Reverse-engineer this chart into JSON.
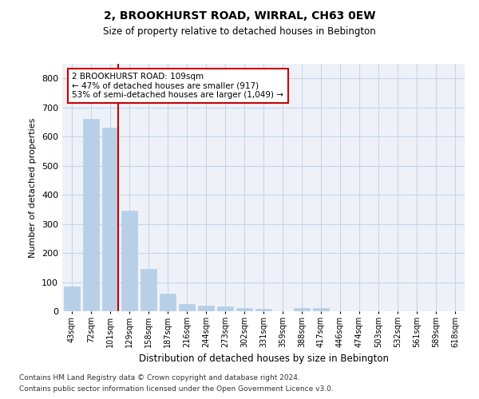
{
  "title": "2, BROOKHURST ROAD, WIRRAL, CH63 0EW",
  "subtitle": "Size of property relative to detached houses in Bebington",
  "xlabel": "Distribution of detached houses by size in Bebington",
  "ylabel": "Number of detached properties",
  "footnote1": "Contains HM Land Registry data © Crown copyright and database right 2024.",
  "footnote2": "Contains public sector information licensed under the Open Government Licence v3.0.",
  "annotation_line1": "2 BROOKHURST ROAD: 109sqm",
  "annotation_line2": "← 47% of detached houses are smaller (917)",
  "annotation_line3": "53% of semi-detached houses are larger (1,049) →",
  "bar_color": "#b8cfe8",
  "marker_line_color": "#cc0000",
  "annotation_box_edge": "#cc0000",
  "grid_color": "#c8d4e8",
  "bg_color": "#eef2f8",
  "categories": [
    "43sqm",
    "72sqm",
    "101sqm",
    "129sqm",
    "158sqm",
    "187sqm",
    "216sqm",
    "244sqm",
    "273sqm",
    "302sqm",
    "331sqm",
    "359sqm",
    "388sqm",
    "417sqm",
    "446sqm",
    "474sqm",
    "503sqm",
    "532sqm",
    "561sqm",
    "589sqm",
    "618sqm"
  ],
  "values": [
    85,
    660,
    630,
    345,
    145,
    60,
    25,
    20,
    17,
    12,
    8,
    0,
    10,
    10,
    0,
    0,
    0,
    0,
    0,
    0,
    0
  ],
  "ylim": [
    0,
    850
  ],
  "yticks": [
    0,
    100,
    200,
    300,
    400,
    500,
    600,
    700,
    800
  ],
  "property_bin_index": 2
}
